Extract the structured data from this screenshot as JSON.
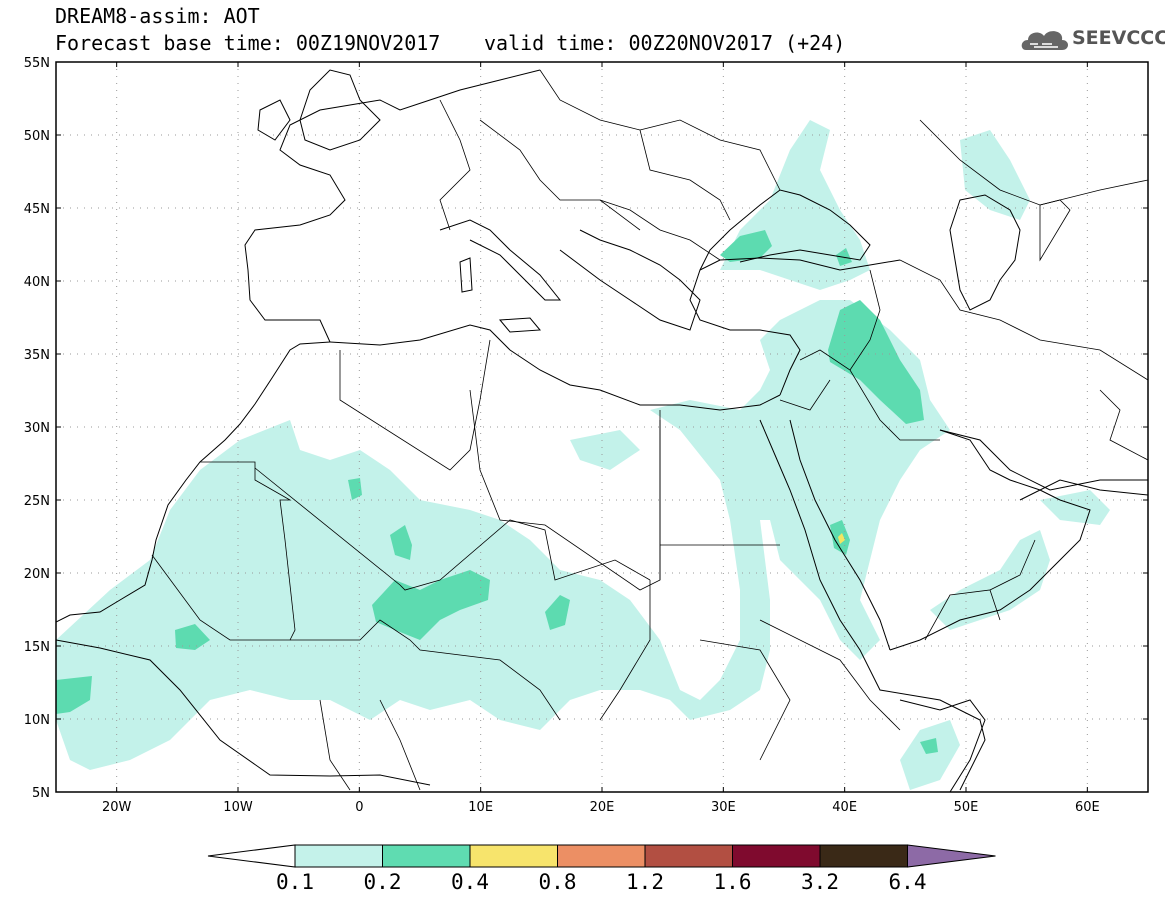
{
  "title": {
    "line1": "DREAM8-assim: AOT",
    "base": "Forecast base time: 00Z19NOV2017",
    "valid": "valid time: 00Z20NOV2017 (+24)"
  },
  "logo": {
    "text": "SEEVCCC",
    "icon": "cloud-logo-icon"
  },
  "map": {
    "lon_range": [
      -25,
      65
    ],
    "lat_range": [
      5,
      55
    ],
    "lat_ticks": [
      "5N",
      "10N",
      "15N",
      "20N",
      "25N",
      "30N",
      "35N",
      "40N",
      "45N",
      "50N",
      "55N"
    ],
    "lon_ticks": [
      "20W",
      "10W",
      "0",
      "10E",
      "20E",
      "30E",
      "40E",
      "50E",
      "60E"
    ],
    "colors": {
      "low": "#c3f2ea",
      "mid": "#5ddbb0",
      "high": "#f3e561"
    }
  },
  "colorbar": {
    "labels": [
      "0.1",
      "0.2",
      "0.4",
      "0.8",
      "1.2",
      "1.6",
      "3.2",
      "6.4"
    ],
    "colors": [
      "#ffffff",
      "#c4f2ea",
      "#5fdcb1",
      "#f7e46c",
      "#ec8f64",
      "#b24f42",
      "#7f0a2e",
      "#3a2917",
      "#8d6aa6"
    ]
  }
}
